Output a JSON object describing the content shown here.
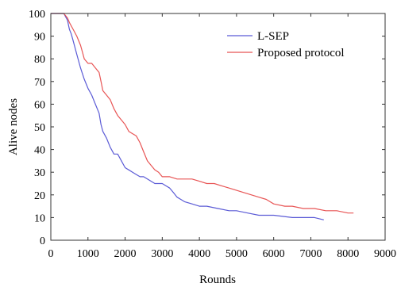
{
  "chart_data": {
    "type": "line",
    "xlabel": "Rounds",
    "ylabel": "Alive nodes",
    "xlim": [
      0,
      9000
    ],
    "ylim": [
      0,
      100
    ],
    "xticks": [
      0,
      1000,
      2000,
      3000,
      4000,
      5000,
      6000,
      7000,
      8000,
      9000
    ],
    "yticks": [
      0,
      10,
      20,
      30,
      40,
      50,
      60,
      70,
      80,
      90,
      100
    ],
    "grid": false,
    "box": true,
    "legend_position": "top-right",
    "series": [
      {
        "name": "L-SEP",
        "color": "#5b5bd6",
        "x": [
          0,
          100,
          200,
          350,
          450,
          500,
          550,
          600,
          700,
          800,
          900,
          1000,
          1100,
          1200,
          1300,
          1350,
          1400,
          1500,
          1550,
          1600,
          1700,
          1800,
          1900,
          2000,
          2100,
          2200,
          2300,
          2400,
          2500,
          2600,
          2700,
          2800,
          2900,
          3000,
          3100,
          3200,
          3300,
          3400,
          3500,
          3600,
          3800,
          4000,
          4200,
          4500,
          4800,
          5000,
          5300,
          5600,
          6000,
          6500,
          6800,
          7100,
          7350
        ],
        "y": [
          100,
          100,
          100,
          100,
          97,
          93,
          91,
          88,
          82,
          76,
          71,
          67,
          64,
          60,
          56,
          51,
          48,
          45,
          43,
          41,
          38,
          38,
          35,
          32,
          31,
          30,
          29,
          28,
          28,
          27,
          26,
          25,
          25,
          25,
          24,
          23,
          21,
          19,
          18,
          17,
          16,
          15,
          15,
          14,
          13,
          13,
          12,
          11,
          11,
          10,
          10,
          10,
          9
        ]
      },
      {
        "name": "Proposed protocol",
        "color": "#e85555",
        "x": [
          0,
          100,
          200,
          350,
          450,
          500,
          600,
          700,
          800,
          850,
          900,
          1000,
          1100,
          1200,
          1300,
          1350,
          1400,
          1450,
          1500,
          1600,
          1700,
          1800,
          1900,
          2000,
          2100,
          2200,
          2300,
          2400,
          2500,
          2600,
          2700,
          2800,
          2900,
          3000,
          3200,
          3400,
          3600,
          3800,
          4000,
          4200,
          4400,
          4600,
          4800,
          5000,
          5200,
          5400,
          5600,
          5800,
          6000,
          6300,
          6500,
          6800,
          7100,
          7400,
          7700,
          8000,
          8150
        ],
        "y": [
          100,
          100,
          100,
          100,
          98,
          96,
          93,
          90,
          86,
          83,
          80,
          78,
          78,
          76,
          74,
          70,
          66,
          65,
          64,
          62,
          58,
          55,
          53,
          51,
          48,
          47,
          46,
          43,
          39,
          35,
          33,
          31,
          30,
          28,
          28,
          27,
          27,
          27,
          26,
          25,
          25,
          24,
          23,
          22,
          21,
          20,
          19,
          18,
          16,
          15,
          15,
          14,
          14,
          13,
          13,
          12,
          12
        ]
      }
    ]
  }
}
